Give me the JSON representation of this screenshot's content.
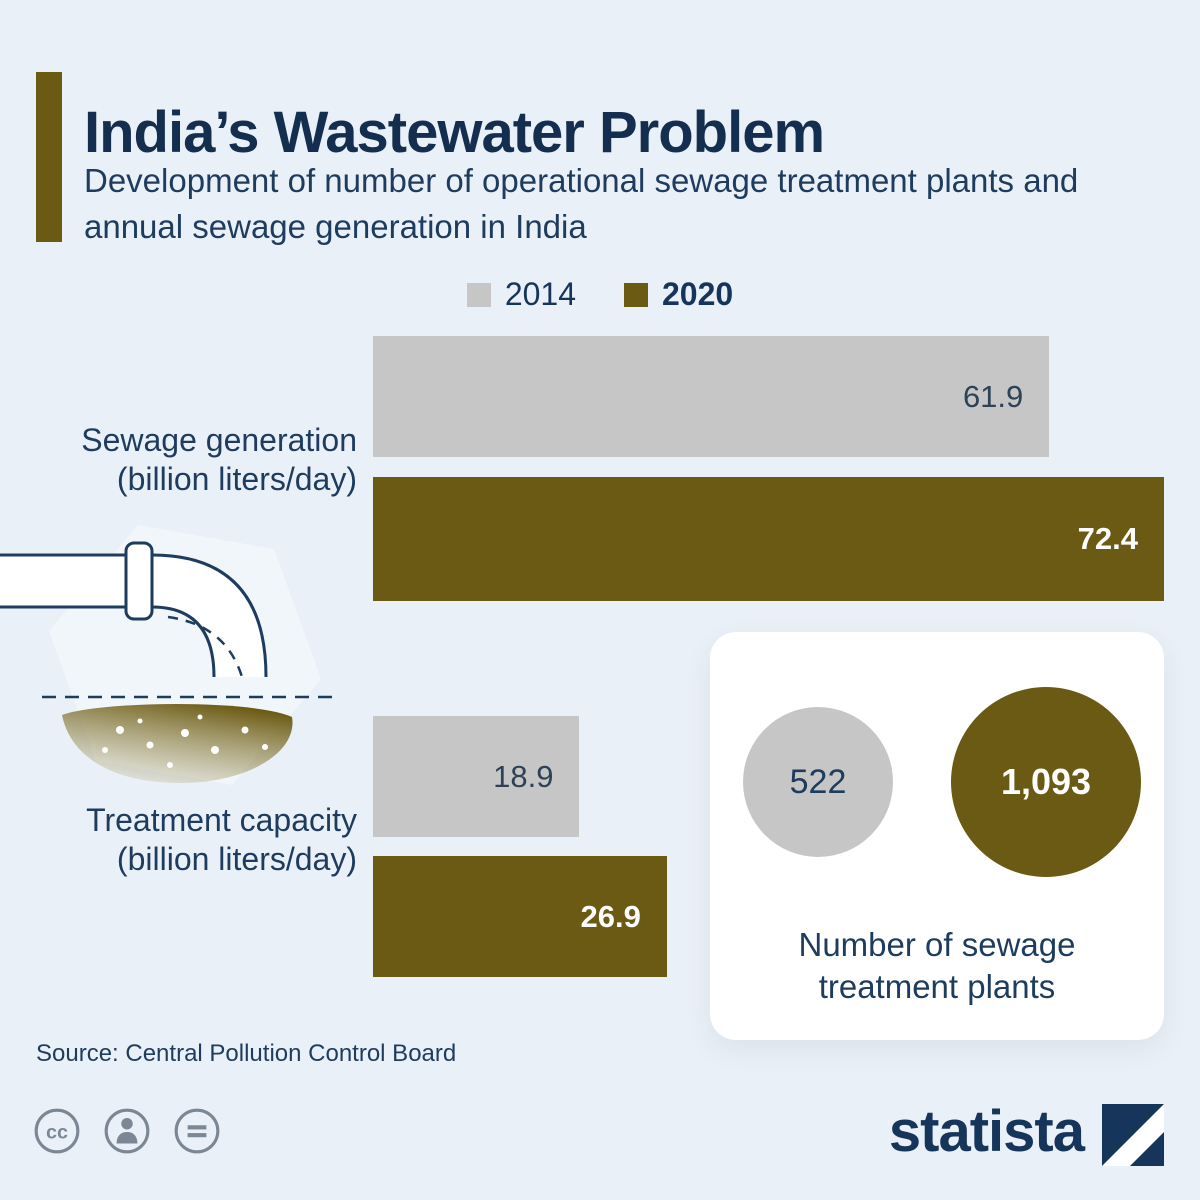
{
  "header": {
    "title": "India’s Wastewater Problem",
    "subtitle": "Development of number of operational sewage treatment plants and annual sewage generation in India"
  },
  "legend": {
    "y2014": "2014",
    "y2020": "2020"
  },
  "chart_data": {
    "type": "bar",
    "orientation": "horizontal",
    "title": "India’s Wastewater Problem",
    "categories": [
      "Sewage generation (billion liters/day)",
      "Treatment capacity (billion liters/day)"
    ],
    "series": [
      {
        "name": "2014",
        "color": "#c6c6c6",
        "values": [
          61.9,
          18.9
        ]
      },
      {
        "name": "2020",
        "color": "#6b5a13",
        "values": [
          72.4,
          26.9
        ]
      }
    ],
    "xlim": [
      0,
      72.4
    ],
    "value_labels": [
      [
        "61.9",
        "72.4"
      ],
      [
        "18.9",
        "26.9"
      ]
    ],
    "legend_position": "top",
    "grid": false,
    "stp_bubbles": {
      "series": [
        {
          "name": "2014",
          "value": 522,
          "color": "#c6c6c6"
        },
        {
          "name": "2020",
          "value": 1093,
          "color": "#6b5a13"
        }
      ],
      "label": "Number of sewage treatment plants"
    }
  },
  "bars": {
    "groups": [
      {
        "line1": "Sewage generation",
        "line2": "(billion liters/day)",
        "v2014": "61.9",
        "v2020": "72.4"
      },
      {
        "line1": "Treatment capacity",
        "line2": "(billion liters/day)",
        "v2014": "18.9",
        "v2020": "26.9"
      }
    ]
  },
  "panel": {
    "count2014": "522",
    "count2020": "1,093",
    "caption_line1": "Number of sewage",
    "caption_line2": "treatment plants"
  },
  "source": "Source: Central Pollution Control Board",
  "footer": {
    "brand": "statista"
  },
  "colors": {
    "accent": "#6b5a13",
    "gray": "#c6c6c6",
    "navy": "#16355a",
    "background": "#eaf0f7"
  }
}
